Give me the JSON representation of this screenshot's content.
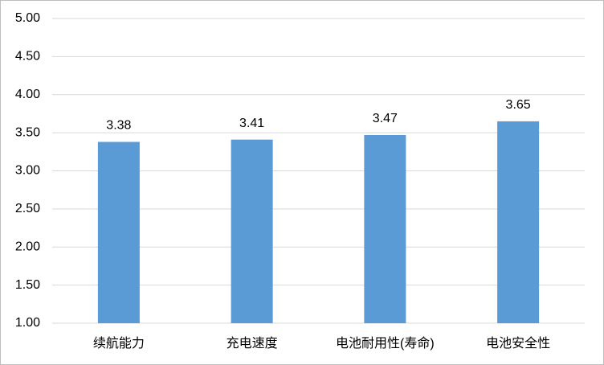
{
  "chart_data": {
    "type": "bar",
    "categories": [
      "续航能力",
      "充电速度",
      "电池耐用性(寿命)",
      "电池安全性"
    ],
    "values": [
      3.38,
      3.41,
      3.47,
      3.65
    ],
    "color": "#5b9bd5",
    "ylim": [
      1,
      5
    ],
    "yticks": [
      {
        "value": 1,
        "label": "1.00"
      },
      {
        "value": 1.5,
        "label": "1.50"
      },
      {
        "value": 2,
        "label": "2.00"
      },
      {
        "value": 2.5,
        "label": "2.50"
      },
      {
        "value": 3,
        "label": "3.00"
      },
      {
        "value": 3.5,
        "label": "3.50"
      },
      {
        "value": 4,
        "label": "4.00"
      },
      {
        "value": 4.5,
        "label": "4.50"
      },
      {
        "value": 5,
        "label": "5.00"
      }
    ],
    "grid": true
  }
}
